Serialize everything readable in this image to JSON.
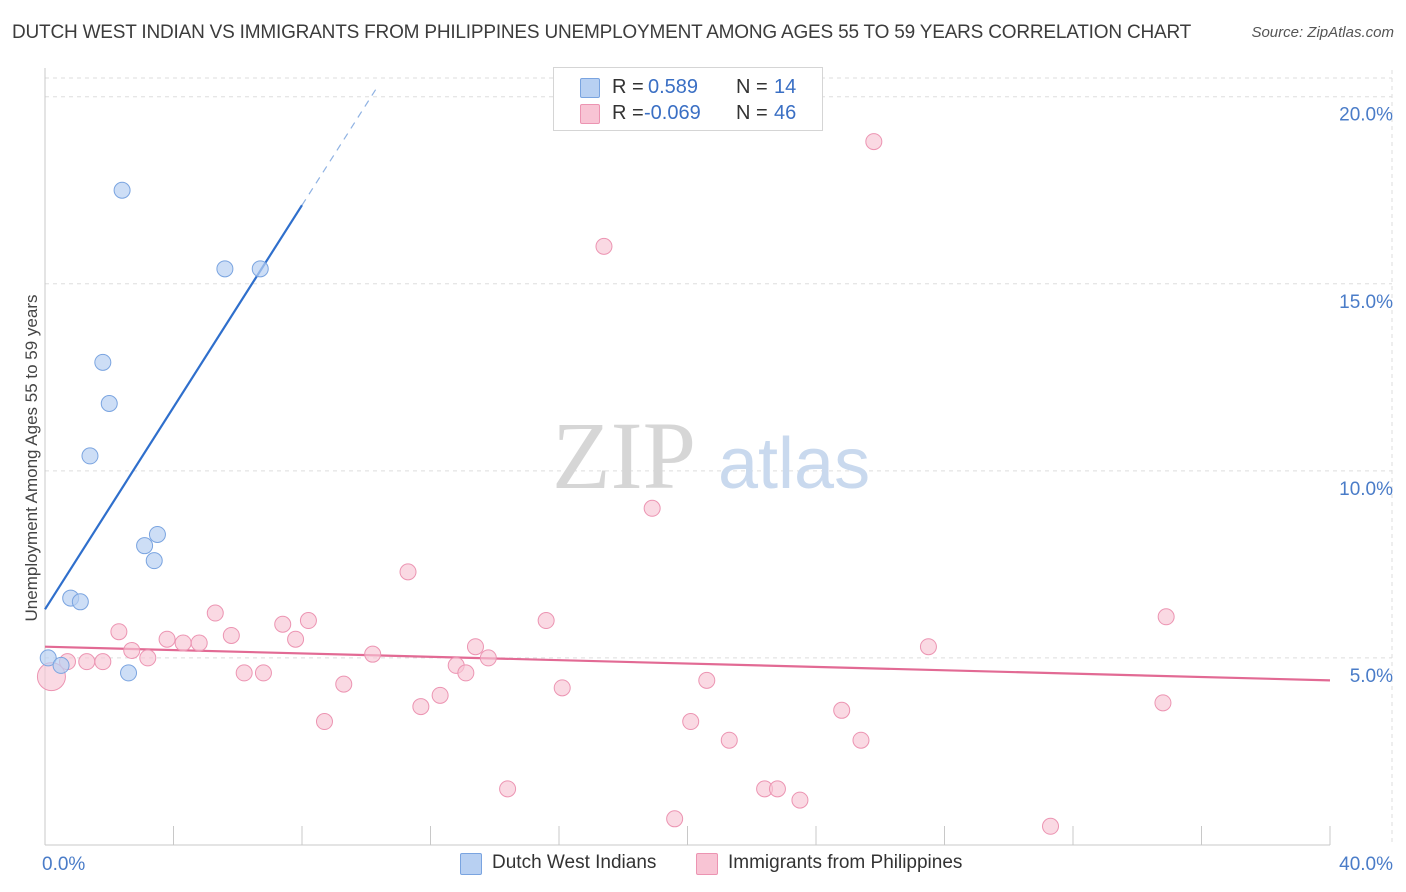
{
  "title": "DUTCH WEST INDIAN VS IMMIGRANTS FROM PHILIPPINES UNEMPLOYMENT AMONG AGES 55 TO 59 YEARS CORRELATION CHART",
  "source": "Source: ZipAtlas.com",
  "watermark": {
    "zip": "ZIP",
    "atlas": "atlas"
  },
  "legend": [
    {
      "r_label": "R =",
      "r_value": "0.589",
      "n_label": "N =",
      "n_value": "14"
    },
    {
      "r_label": "R =",
      "r_value": "-0.069",
      "n_label": "N =",
      "n_value": "46"
    }
  ],
  "colors": {
    "blue_fill": "#b8d0f2",
    "blue_stroke": "#7aa4e0",
    "blue_line": "#2f6fcc",
    "pink_fill": "#f8c4d4",
    "pink_stroke": "#ec94b2",
    "pink_line": "#e26a94",
    "grid": "#dedede",
    "axis_text": "#4a7cc8"
  },
  "chart_data": {
    "type": "scatter",
    "title": "DUTCH WEST INDIAN VS IMMIGRANTS FROM PHILIPPINES UNEMPLOYMENT AMONG AGES 55 TO 59 YEARS CORRELATION CHART",
    "xlabel": "",
    "ylabel": "Unemployment Among Ages 55 to 59 years",
    "xlim": [
      0,
      40
    ],
    "ylim": [
      0,
      20.5
    ],
    "x_tick_labels": [
      "0.0%",
      "40.0%"
    ],
    "y_ticks": [
      5,
      10,
      15,
      20
    ],
    "y_tick_labels": [
      "5.0%",
      "10.0%",
      "15.0%",
      "20.0%"
    ],
    "series": [
      {
        "name": "Dutch West Indians",
        "points": [
          [
            0.1,
            5.0
          ],
          [
            0.5,
            4.8
          ],
          [
            0.8,
            6.6
          ],
          [
            1.1,
            6.5
          ],
          [
            1.8,
            12.9
          ],
          [
            2.0,
            11.8
          ],
          [
            1.4,
            10.4
          ],
          [
            2.4,
            17.5
          ],
          [
            3.1,
            8.0
          ],
          [
            3.5,
            8.3
          ],
          [
            3.4,
            7.6
          ],
          [
            2.6,
            4.6
          ],
          [
            5.6,
            15.4
          ],
          [
            6.7,
            15.4
          ]
        ],
        "trend": {
          "x0": 0,
          "y0": 6.3,
          "x1": 8.0,
          "y1": 17.1,
          "dash_x1": 10.3,
          "dash_y1": 20.2
        }
      },
      {
        "name": "Immigrants from Philippines",
        "points": [
          [
            0.2,
            4.5
          ],
          [
            0.7,
            4.9
          ],
          [
            1.3,
            4.9
          ],
          [
            1.8,
            4.9
          ],
          [
            2.3,
            5.7
          ],
          [
            2.7,
            5.2
          ],
          [
            3.2,
            5.0
          ],
          [
            3.8,
            5.5
          ],
          [
            4.3,
            5.4
          ],
          [
            4.8,
            5.4
          ],
          [
            5.3,
            6.2
          ],
          [
            5.8,
            5.6
          ],
          [
            6.2,
            4.6
          ],
          [
            6.8,
            4.6
          ],
          [
            7.4,
            5.9
          ],
          [
            7.8,
            5.5
          ],
          [
            8.2,
            6.0
          ],
          [
            8.7,
            3.3
          ],
          [
            9.3,
            4.3
          ],
          [
            10.2,
            5.1
          ],
          [
            11.3,
            7.3
          ],
          [
            11.7,
            3.7
          ],
          [
            12.3,
            4.0
          ],
          [
            12.8,
            4.8
          ],
          [
            13.1,
            4.6
          ],
          [
            13.4,
            5.3
          ],
          [
            13.8,
            5.0
          ],
          [
            14.4,
            1.5
          ],
          [
            15.6,
            6.0
          ],
          [
            16.1,
            4.2
          ],
          [
            17.4,
            16.0
          ],
          [
            18.9,
            9.0
          ],
          [
            19.6,
            0.7
          ],
          [
            20.1,
            3.3
          ],
          [
            20.6,
            4.4
          ],
          [
            21.3,
            2.8
          ],
          [
            22.4,
            1.5
          ],
          [
            22.8,
            1.5
          ],
          [
            23.5,
            1.2
          ],
          [
            24.8,
            3.6
          ],
          [
            25.4,
            2.8
          ],
          [
            25.8,
            18.8
          ],
          [
            27.5,
            5.3
          ],
          [
            31.3,
            0.5
          ],
          [
            34.8,
            3.8
          ],
          [
            34.9,
            6.1
          ]
        ],
        "trend": {
          "x0": 0,
          "y0": 5.3,
          "x1": 40,
          "y1": 4.4
        }
      }
    ]
  }
}
